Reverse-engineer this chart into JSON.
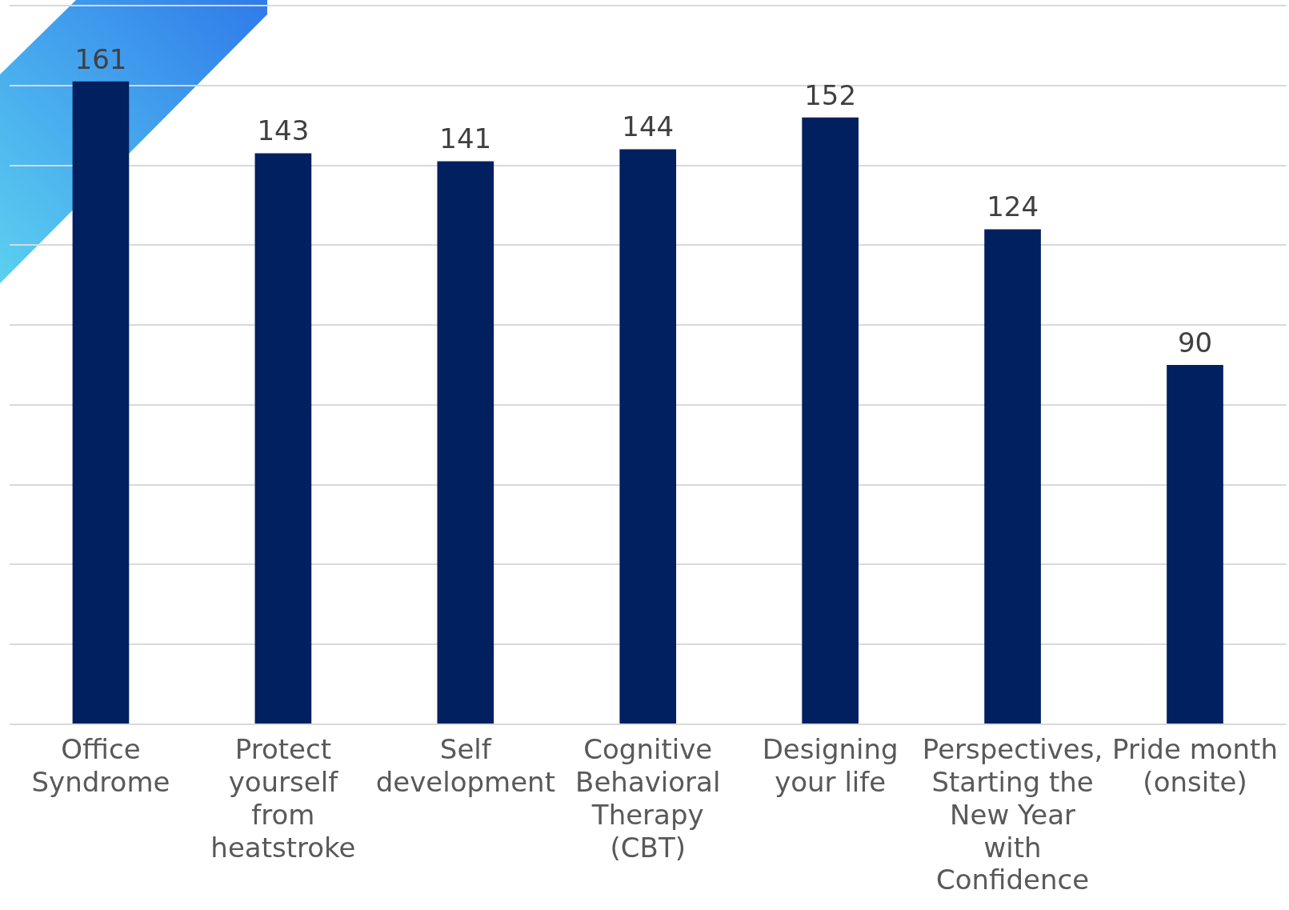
{
  "chart_data": {
    "type": "bar",
    "categories": [
      "Office Syndrome",
      "Protect yourself from heatstroke",
      "Self development",
      "Cognitive Behavioral Therapy (CBT)",
      "Designing your life",
      "Perspectives, Starting the New Year with Confidence",
      "Pride month (onsite)"
    ],
    "values": [
      161,
      143,
      141,
      144,
      152,
      124,
      90
    ],
    "color": "#002060",
    "ylim": [
      0,
      180
    ],
    "yticks": [
      0,
      20,
      40,
      60,
      80,
      100,
      120,
      140,
      160,
      180
    ],
    "grid": "y",
    "tick_labels": "x",
    "data_labels": true,
    "legend": false
  }
}
